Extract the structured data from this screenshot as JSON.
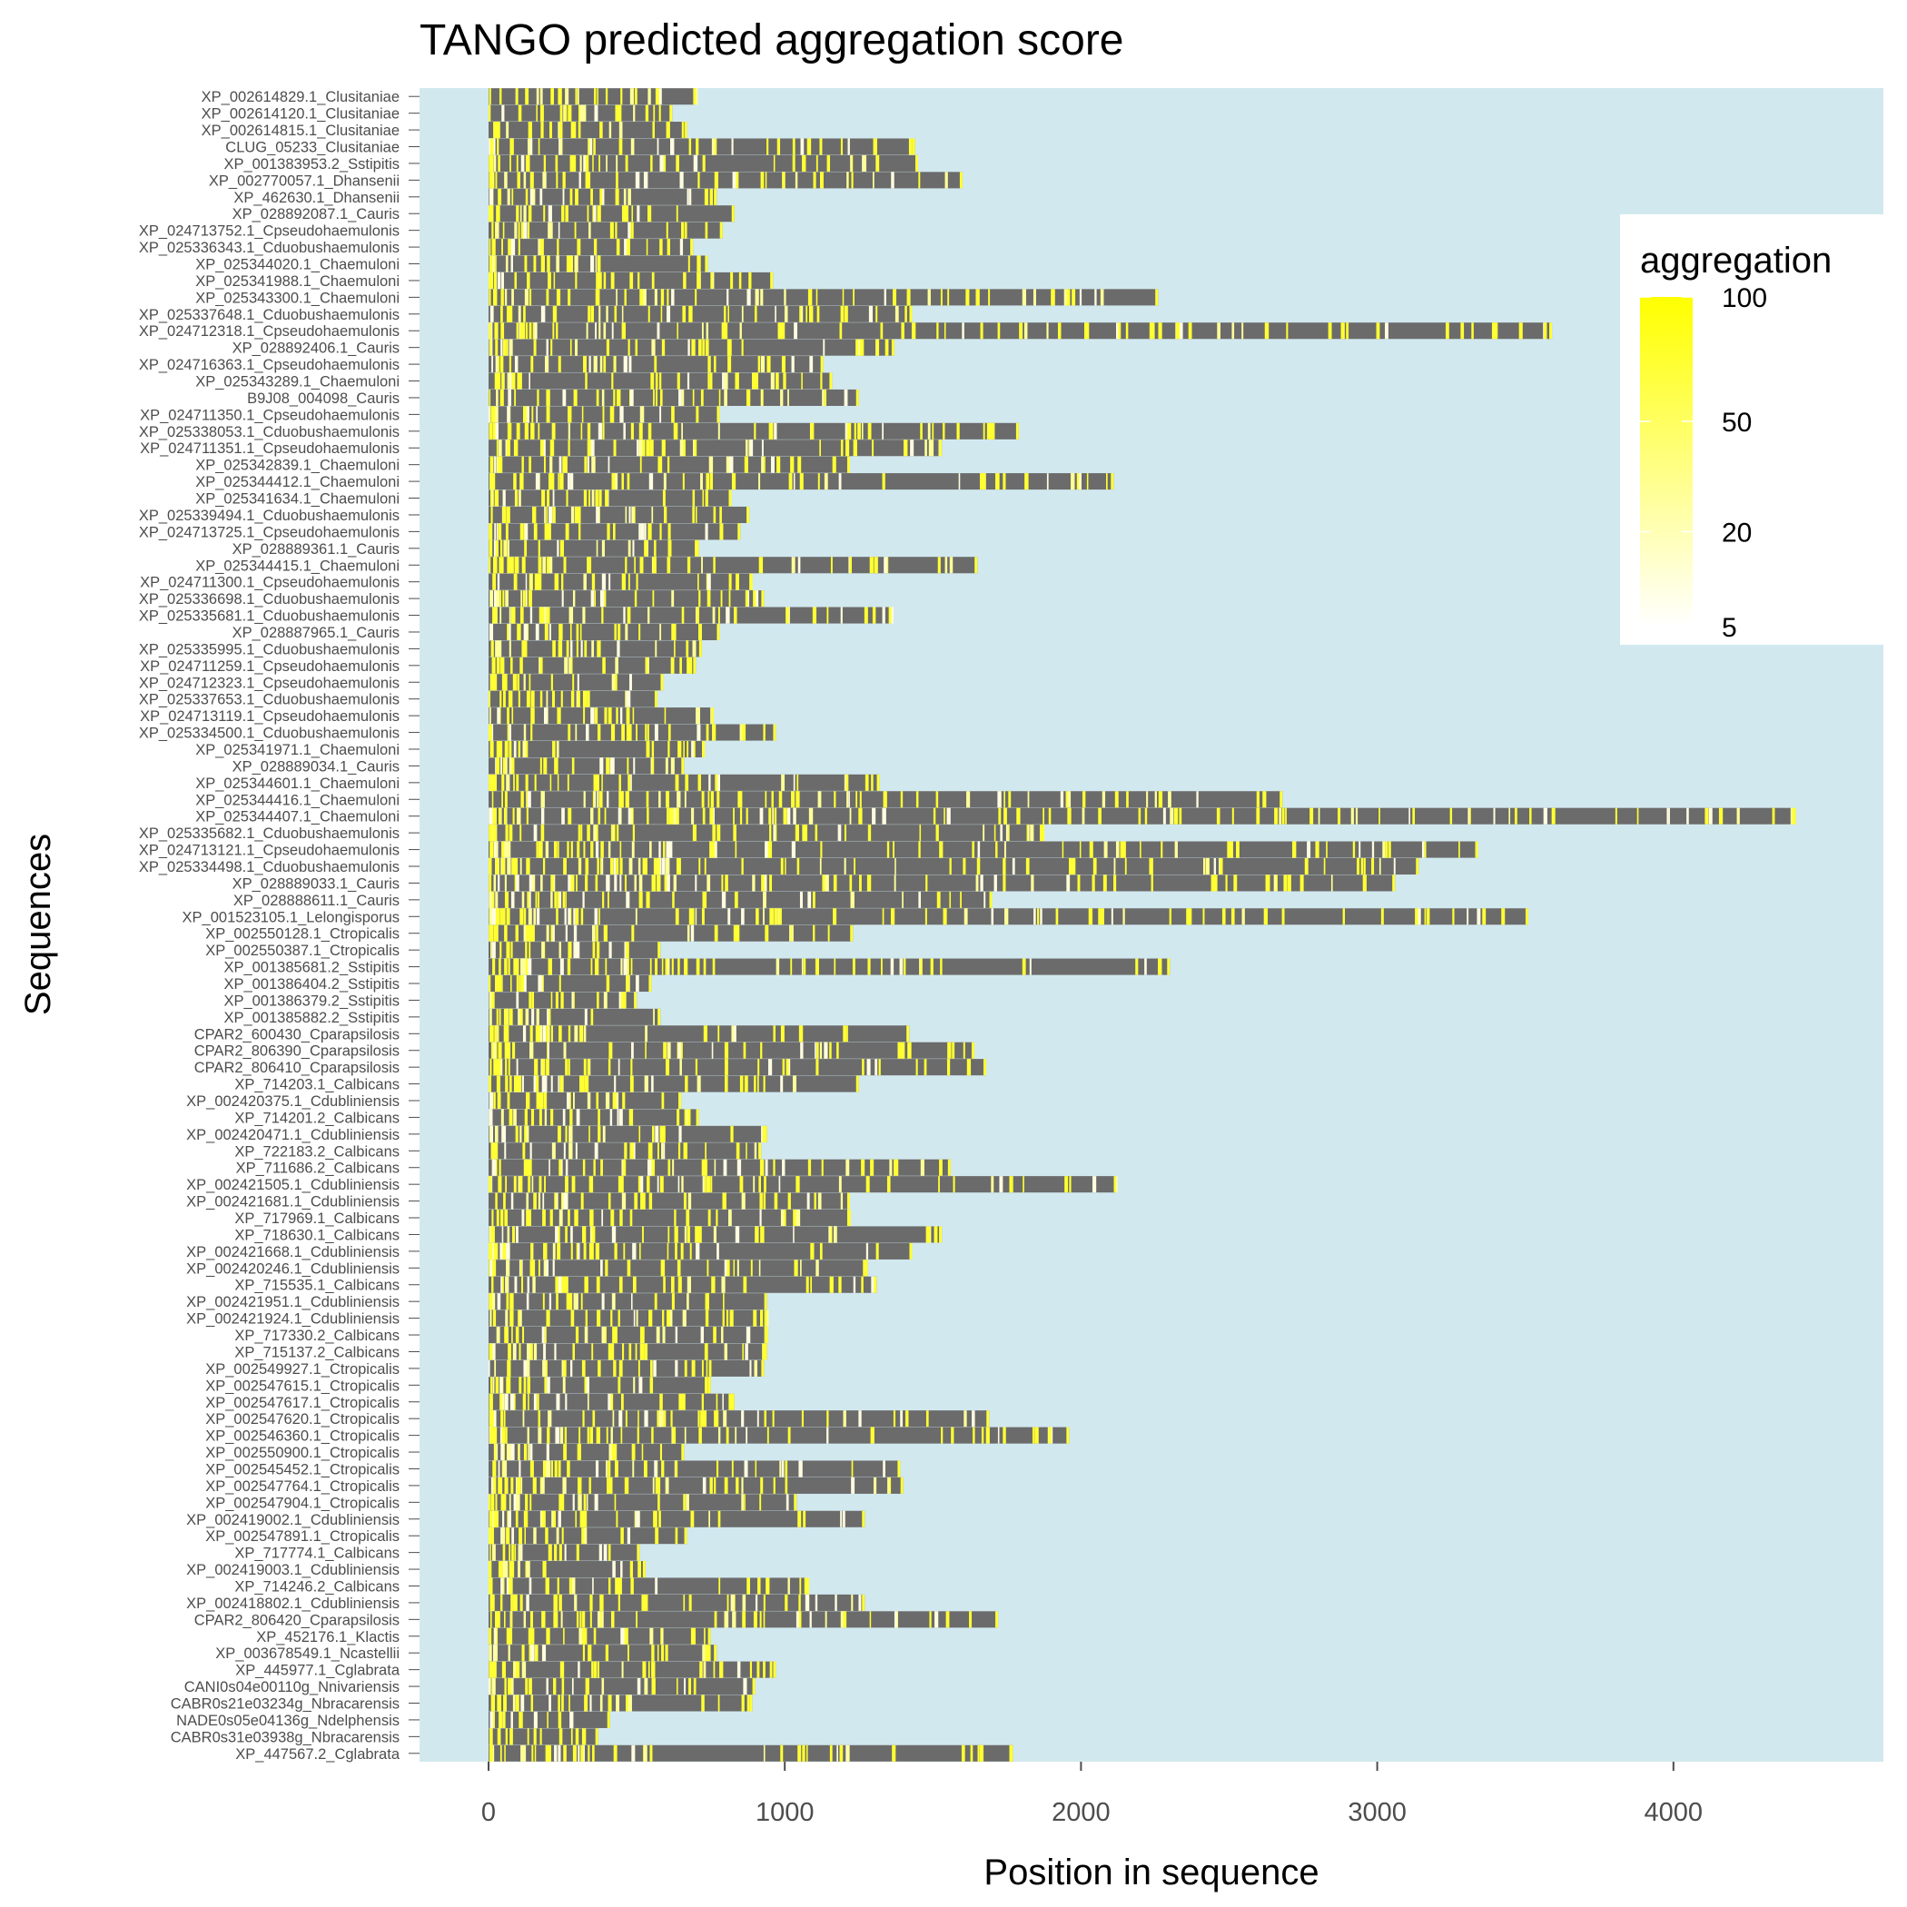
{
  "chart_data": {
    "type": "heatmap",
    "title": "TANGO predicted aggregation score",
    "xlabel": "Position in sequence",
    "ylabel": "Sequences",
    "xlim": [
      -230,
      4700
    ],
    "x_ticks": [
      0,
      1000,
      2000,
      3000,
      4000
    ],
    "x_tick_labels": [
      "0",
      "1000",
      "2000",
      "3000",
      "4000"
    ],
    "legend": {
      "title": "aggregation",
      "placement": "right",
      "scale": "sqrt",
      "range": [
        5,
        100
      ],
      "ticks": [
        100,
        50,
        20,
        5
      ],
      "tick_labels": [
        "100",
        "50",
        "20",
        "5"
      ]
    },
    "colors": {
      "panel_background": "#d2e8ef",
      "sequence_bar": "#6b6b6b",
      "low": "#ffffff",
      "high": "#ffff00"
    },
    "sequences": [
      {
        "name": "XP_002614829.1_Clusitaniae",
        "length": 700
      },
      {
        "name": "XP_002614120.1_Clusitaniae",
        "length": 620
      },
      {
        "name": "XP_002614815.1_Clusitaniae",
        "length": 670
      },
      {
        "name": "CLUG_05233_Clusitaniae",
        "length": 1440
      },
      {
        "name": "XP_001383953.2_Sstipitis",
        "length": 1450
      },
      {
        "name": "XP_002770057.1_Dhansenii",
        "length": 1600
      },
      {
        "name": "XP_462630.1_Dhansenii",
        "length": 770
      },
      {
        "name": "XP_028892087.1_Cauris",
        "length": 830
      },
      {
        "name": "XP_024713752.1_Cpseudohaemulonis",
        "length": 790
      },
      {
        "name": "XP_025336343.1_Cduobushaemulonis",
        "length": 690
      },
      {
        "name": "XP_025344020.1_Chaemuloni",
        "length": 740
      },
      {
        "name": "XP_025341988.1_Chaemuloni",
        "length": 960
      },
      {
        "name": "XP_025343300.1_Chaemuloni",
        "length": 2260
      },
      {
        "name": "XP_025337648.1_Cduobushaemulonis",
        "length": 1430
      },
      {
        "name": "XP_024712318.1_Cpseudohaemulonis",
        "length": 3590
      },
      {
        "name": "XP_028892406.1_Cauris",
        "length": 1370
      },
      {
        "name": "XP_024716363.1_Cpseudohaemulonis",
        "length": 1130
      },
      {
        "name": "XP_025343289.1_Chaemuloni",
        "length": 1160
      },
      {
        "name": "B9J08_004098_Cauris",
        "length": 1250
      },
      {
        "name": "XP_024711350.1_Cpseudohaemulonis",
        "length": 780
      },
      {
        "name": "XP_025338053.1_Cduobushaemulonis",
        "length": 1790
      },
      {
        "name": "XP_024711351.1_Cpseudohaemulonis",
        "length": 1530
      },
      {
        "name": "XP_025342839.1_Chaemuloni",
        "length": 1220
      },
      {
        "name": "XP_025344412.1_Chaemuloni",
        "length": 2110
      },
      {
        "name": "XP_025341634.1_Chaemuloni",
        "length": 820
      },
      {
        "name": "XP_025339494.1_Cduobushaemulonis",
        "length": 880
      },
      {
        "name": "XP_024713725.1_Cpseudohaemulonis",
        "length": 850
      },
      {
        "name": "XP_028889361.1_Cauris",
        "length": 710
      },
      {
        "name": "XP_025344415.1_Chaemuloni",
        "length": 1650
      },
      {
        "name": "XP_024711300.1_Cpseudohaemulonis",
        "length": 890
      },
      {
        "name": "XP_025336698.1_Cduobushaemulonis",
        "length": 930
      },
      {
        "name": "XP_025335681.1_Cduobushaemulonis",
        "length": 1360
      },
      {
        "name": "XP_028887965.1_Cauris",
        "length": 780
      },
      {
        "name": "XP_025335995.1_Cduobushaemulonis",
        "length": 720
      },
      {
        "name": "XP_024711259.1_Cpseudohaemulonis",
        "length": 700
      },
      {
        "name": "XP_024712323.1_Cpseudohaemulonis",
        "length": 590
      },
      {
        "name": "XP_025337653.1_Cduobushaemulonis",
        "length": 570
      },
      {
        "name": "XP_024713119.1_Cpseudohaemulonis",
        "length": 760
      },
      {
        "name": "XP_025334500.1_Cduobushaemulonis",
        "length": 970
      },
      {
        "name": "XP_025341971.1_Chaemuloni",
        "length": 730
      },
      {
        "name": "XP_028889034.1_Cauris",
        "length": 660
      },
      {
        "name": "XP_025344601.1_Chaemuloni",
        "length": 1320
      },
      {
        "name": "XP_025344416.1_Chaemuloni",
        "length": 2680
      },
      {
        "name": "XP_025344407.1_Chaemuloni",
        "length": 4410
      },
      {
        "name": "XP_025335682.1_Cduobushaemulonis",
        "length": 1870
      },
      {
        "name": "XP_024713121.1_Cpseudohaemulonis",
        "length": 3340
      },
      {
        "name": "XP_025334498.1_Cduobushaemulonis",
        "length": 3140
      },
      {
        "name": "XP_028889033.1_Cauris",
        "length": 3060
      },
      {
        "name": "XP_028888611.1_Cauris",
        "length": 1700
      },
      {
        "name": "XP_001523105.1_Lelongisporus",
        "length": 3510
      },
      {
        "name": "XP_002550128.1_Ctropicalis",
        "length": 1230
      },
      {
        "name": "XP_002550387.1_Ctropicalis",
        "length": 580
      },
      {
        "name": "XP_001385681.2_Sstipitis",
        "length": 2300
      },
      {
        "name": "XP_001386404.2_Sstipitis",
        "length": 550
      },
      {
        "name": "XP_001386379.2_Sstipitis",
        "length": 500
      },
      {
        "name": "XP_001385882.2_Sstipitis",
        "length": 580
      },
      {
        "name": "CPAR2_600430_Cparapsilosis",
        "length": 1420
      },
      {
        "name": "CPAR2_806390_Cparapsilosis",
        "length": 1640
      },
      {
        "name": "CPAR2_806410_Cparapsilosis",
        "length": 1680
      },
      {
        "name": "XP_714203.1_Calbicans",
        "length": 1250
      },
      {
        "name": "XP_002420375.1_Cdubliniensis",
        "length": 650
      },
      {
        "name": "XP_714201.2_Calbicans",
        "length": 710
      },
      {
        "name": "XP_002420471.1_Cdubliniensis",
        "length": 940
      },
      {
        "name": "XP_722183.2_Calbicans",
        "length": 920
      },
      {
        "name": "XP_711686.2_Calbicans",
        "length": 1560
      },
      {
        "name": "XP_002421505.1_Cdubliniensis",
        "length": 2120
      },
      {
        "name": "XP_002421681.1_Cdubliniensis",
        "length": 1220
      },
      {
        "name": "XP_717969.1_Calbicans",
        "length": 1220
      },
      {
        "name": "XP_718630.1_Calbicans",
        "length": 1530
      },
      {
        "name": "XP_002421668.1_Cdubliniensis",
        "length": 1430
      },
      {
        "name": "XP_002420246.1_Cdubliniensis",
        "length": 1280
      },
      {
        "name": "XP_715535.1_Calbicans",
        "length": 1310
      },
      {
        "name": "XP_002421951.1_Cdubliniensis",
        "length": 940
      },
      {
        "name": "XP_002421924.1_Cdubliniensis",
        "length": 940
      },
      {
        "name": "XP_717330.2_Calbicans",
        "length": 940
      },
      {
        "name": "XP_715137.2_Calbicans",
        "length": 940
      },
      {
        "name": "XP_002549927.1_Ctropicalis",
        "length": 930
      },
      {
        "name": "XP_002547615.1_Ctropicalis",
        "length": 750
      },
      {
        "name": "XP_002547617.1_Ctropicalis",
        "length": 830
      },
      {
        "name": "XP_002547620.1_Ctropicalis",
        "length": 1690
      },
      {
        "name": "XP_002546360.1_Ctropicalis",
        "length": 1960
      },
      {
        "name": "XP_002550900.1_Ctropicalis",
        "length": 660
      },
      {
        "name": "XP_002545452.1_Ctropicalis",
        "length": 1390
      },
      {
        "name": "XP_002547764.1_Ctropicalis",
        "length": 1400
      },
      {
        "name": "XP_002547904.1_Ctropicalis",
        "length": 1040
      },
      {
        "name": "XP_002419002.1_Cdubliniensis",
        "length": 1270
      },
      {
        "name": "XP_002547891.1_Ctropicalis",
        "length": 670
      },
      {
        "name": "XP_717774.1_Calbicans",
        "length": 510
      },
      {
        "name": "XP_002419003.1_Cdubliniensis",
        "length": 530
      },
      {
        "name": "XP_714246.2_Calbicans",
        "length": 1080
      },
      {
        "name": "XP_002418802.1_Cdubliniensis",
        "length": 1270
      },
      {
        "name": "CPAR2_806420_Cparapsilosis",
        "length": 1720
      },
      {
        "name": "XP_452176.1_Klactis",
        "length": 750
      },
      {
        "name": "XP_003678549.1_Ncastellii",
        "length": 770
      },
      {
        "name": "XP_445977.1_Cglabrata",
        "length": 970
      },
      {
        "name": "CANI0s04e00110g_Nnivariensis",
        "length": 900
      },
      {
        "name": "CABR0s21e03234g_Nbracarensis",
        "length": 890
      },
      {
        "name": "NADE0s05e04136g_Ndelphensis",
        "length": 410
      },
      {
        "name": "CABR0s31e03938g_Nbracarensis",
        "length": 370
      },
      {
        "name": "XP_447567.2_Cglabrata",
        "length": 1770
      }
    ]
  }
}
